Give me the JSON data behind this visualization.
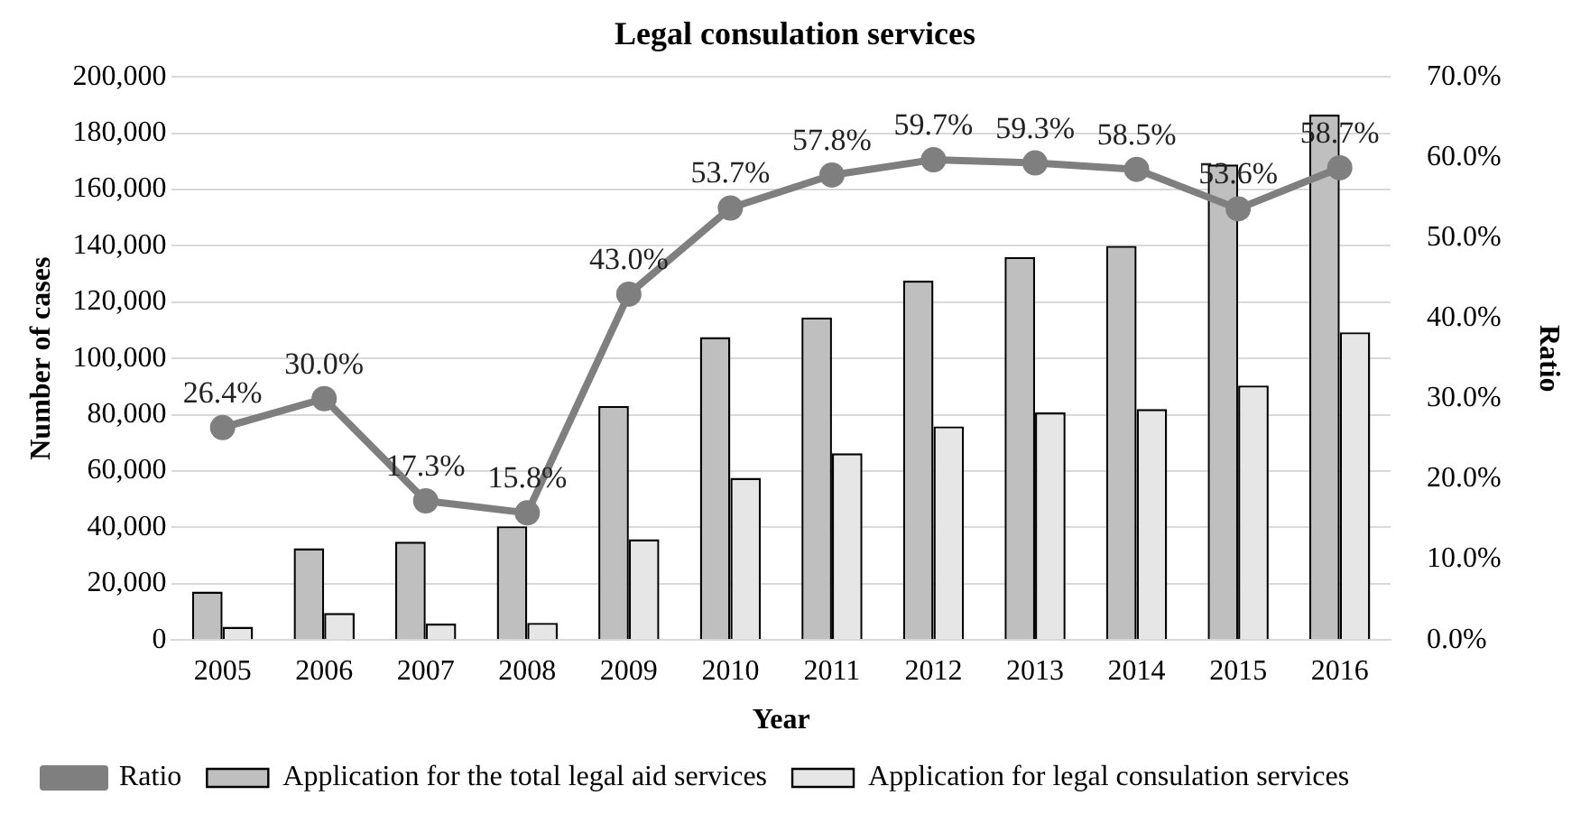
{
  "chart_data": {
    "type": "bar",
    "title": "Legal consulation services",
    "xlabel": "Year",
    "ylabel": "Number of cases",
    "y2label": "Ratio",
    "categories": [
      "2005",
      "2006",
      "2007",
      "2008",
      "2009",
      "2010",
      "2011",
      "2012",
      "2013",
      "2014",
      "2015",
      "2016"
    ],
    "series": [
      {
        "name": "Application for the total legal aid services",
        "color": "#bfbfbf",
        "values": [
          17200,
          32600,
          34900,
          40400,
          83100,
          107600,
          114500,
          127600,
          136000,
          140000,
          168900,
          186600
        ]
      },
      {
        "name": "Application for legal consulation services",
        "color": "#e6e6e6",
        "values": [
          4700,
          9600,
          5800,
          6100,
          35800,
          57600,
          66300,
          75900,
          80800,
          82000,
          90400,
          109300
        ]
      },
      {
        "name": "Ratio",
        "type": "line",
        "axis": "y2",
        "color": "#7f7f7f",
        "marker": "circle",
        "values": [
          26.4,
          30.0,
          17.3,
          15.8,
          43.0,
          53.7,
          57.8,
          59.7,
          59.3,
          58.5,
          53.6,
          58.7
        ],
        "value_labels": [
          "26.4%",
          "30.0%",
          "17.3%",
          "15.8%",
          "43.0%",
          "53.7%",
          "57.8%",
          "59.7%",
          "59.3%",
          "58.5%",
          "53.6%",
          "58.7%"
        ]
      }
    ],
    "ylim": [
      0,
      200000
    ],
    "yticks": [
      {
        "value": 0,
        "label": "0"
      },
      {
        "value": 20000,
        "label": "20,000"
      },
      {
        "value": 40000,
        "label": "40,000"
      },
      {
        "value": 60000,
        "label": "60,000"
      },
      {
        "value": 80000,
        "label": "80,000"
      },
      {
        "value": 100000,
        "label": "100,000"
      },
      {
        "value": 120000,
        "label": "120,000"
      },
      {
        "value": 140000,
        "label": "140,000"
      },
      {
        "value": 160000,
        "label": "160,000"
      },
      {
        "value": 180000,
        "label": "180,000"
      },
      {
        "value": 200000,
        "label": "200,000"
      }
    ],
    "y2lim": [
      0,
      70
    ],
    "y2ticks": [
      {
        "value": 0,
        "label": "0.0%"
      },
      {
        "value": 10,
        "label": "10.0%"
      },
      {
        "value": 20,
        "label": "20.0%"
      },
      {
        "value": 30,
        "label": "30.0%"
      },
      {
        "value": 40,
        "label": "40.0%"
      },
      {
        "value": 50,
        "label": "50.0%"
      },
      {
        "value": 60,
        "label": "60.0%"
      },
      {
        "value": 70,
        "label": "70.0%"
      }
    ],
    "grid": "y",
    "legend": "bottom"
  }
}
